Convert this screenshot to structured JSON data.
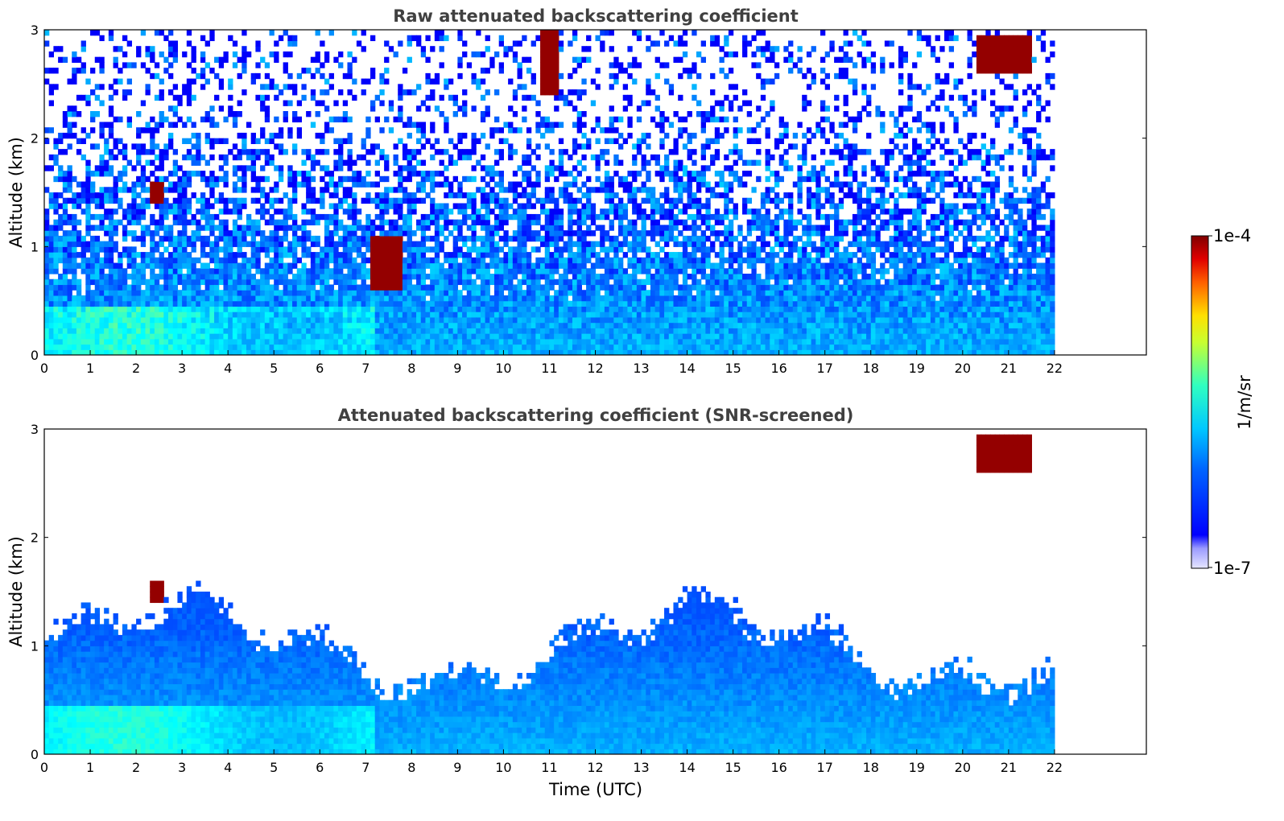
{
  "chart_data": [
    {
      "type": "heatmap",
      "title": "Raw attenuated backscattering coefficient",
      "ylabel": "Altitude (km)",
      "xlabel": "",
      "xlim": [
        0,
        24
      ],
      "ylim": [
        0,
        3
      ],
      "xticks": [
        "0",
        "1",
        "2",
        "3",
        "4",
        "5",
        "6",
        "7",
        "8",
        "9",
        "10",
        "11",
        "12",
        "13",
        "14",
        "15",
        "16",
        "17",
        "18",
        "19",
        "20",
        "21",
        "22"
      ],
      "yticks": [
        "0",
        "1",
        "2",
        "3"
      ],
      "data_end_hour": 22,
      "screening": "none",
      "features": [
        {
          "name": "aerosol_layer",
          "t_start": 0,
          "t_end": 7.2,
          "alt_top_km": 0.45,
          "level": "cyan"
        },
        {
          "name": "cloud",
          "t_start": 2.3,
          "t_end": 2.6,
          "alt_km": [
            1.4,
            1.6
          ],
          "level": "max"
        },
        {
          "name": "cloud",
          "t_start": 7.1,
          "t_end": 7.8,
          "alt_km": [
            0.6,
            1.1
          ],
          "level": "max"
        },
        {
          "name": "cloud",
          "t_start": 10.8,
          "t_end": 11.2,
          "alt_km": [
            2.4,
            3.0
          ],
          "level": "max"
        },
        {
          "name": "cloud",
          "t_start": 20.3,
          "t_end": 21.5,
          "alt_km": [
            2.6,
            2.95
          ],
          "level": "max"
        }
      ]
    },
    {
      "type": "heatmap",
      "title": "Attenuated backscattering coefficient (SNR-screened)",
      "ylabel": "Altitude (km)",
      "xlabel": "Time (UTC)",
      "xlim": [
        0,
        24
      ],
      "ylim": [
        0,
        3
      ],
      "xticks": [
        "0",
        "1",
        "2",
        "3",
        "4",
        "5",
        "6",
        "7",
        "8",
        "9",
        "10",
        "11",
        "12",
        "13",
        "14",
        "15",
        "16",
        "17",
        "18",
        "19",
        "20",
        "21",
        "22"
      ],
      "yticks": [
        "0",
        "1",
        "2",
        "3"
      ],
      "data_end_hour": 22,
      "screening": "SNR",
      "features": [
        {
          "name": "boundary_layer_top",
          "t_start": 0,
          "t_end": 22,
          "alt_km_range": [
            0.5,
            1.6
          ]
        },
        {
          "name": "cloud",
          "t_start": 2.3,
          "t_end": 2.6,
          "alt_km": [
            1.4,
            1.6
          ],
          "level": "max"
        },
        {
          "name": "cloud",
          "t_start": 20.3,
          "t_end": 21.5,
          "alt_km": [
            2.6,
            2.95
          ],
          "level": "max"
        }
      ]
    }
  ],
  "colorbar": {
    "label": "1/m/sr",
    "max_label": "1e-4",
    "min_label": "1e-7",
    "scale": "log",
    "colormap": "jet"
  }
}
